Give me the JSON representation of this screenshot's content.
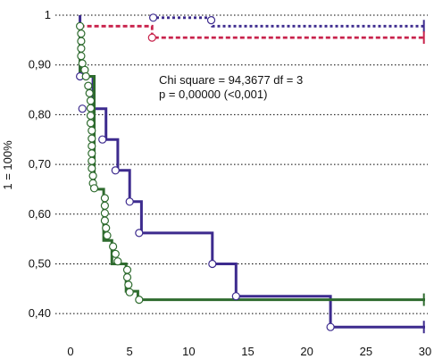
{
  "chart_data": {
    "type": "line",
    "step": true,
    "title": "",
    "xlabel": "",
    "ylabel": "1 = 100%",
    "xlim": [
      0,
      30
    ],
    "ylim": [
      0.35,
      1.0
    ],
    "x_ticks": [
      0,
      5,
      10,
      15,
      20,
      25,
      30
    ],
    "x_tick_labels": [
      "0",
      "5",
      "10",
      "15",
      "20",
      "25",
      "30"
    ],
    "y_ticks": [
      0.4,
      0.5,
      0.6,
      0.7,
      0.8,
      0.9,
      1.0
    ],
    "y_tick_labels": [
      "0,40",
      "0,50",
      "0,60",
      "0,70",
      "0,80",
      "0,90",
      "1"
    ],
    "grid": "horizontal dotted",
    "legend": "none",
    "annotations": [
      "Chi square = 94,3677 df = 3",
      "p = 0,00000 (<0,001)"
    ],
    "series": [
      {
        "color": "#3d2b8e",
        "dash": "solid",
        "steps": [
          [
            0.8,
            1.0
          ],
          [
            0.8,
            0.877
          ],
          [
            1.9,
            0.877
          ],
          [
            1.9,
            0.812
          ],
          [
            3.0,
            0.812
          ],
          [
            3.0,
            0.75
          ],
          [
            4.0,
            0.75
          ],
          [
            4.0,
            0.688
          ],
          [
            5.0,
            0.688
          ],
          [
            5.0,
            0.625
          ],
          [
            6.0,
            0.625
          ],
          [
            6.0,
            0.562
          ],
          [
            12.0,
            0.562
          ],
          [
            12.0,
            0.5
          ],
          [
            14.0,
            0.5
          ],
          [
            14.0,
            0.435
          ],
          [
            22.0,
            0.435
          ],
          [
            22.0,
            0.373
          ],
          [
            30.0,
            0.373
          ]
        ],
        "censored": [
          [
            0.8,
            0.877
          ],
          [
            1.0,
            0.812
          ],
          [
            2.7,
            0.75
          ],
          [
            3.8,
            0.688
          ],
          [
            5.0,
            0.625
          ],
          [
            5.8,
            0.562
          ],
          [
            12.0,
            0.5
          ],
          [
            14.0,
            0.435
          ],
          [
            22.0,
            0.373
          ]
        ],
        "end_mark": [
          29.9,
          0.373
        ]
      },
      {
        "color": "#2e6b2e",
        "dash": "solid",
        "steps": [
          [
            0.8,
            0.978
          ],
          [
            0.8,
            0.877
          ],
          [
            2.0,
            0.877
          ],
          [
            2.0,
            0.65
          ],
          [
            2.8,
            0.65
          ],
          [
            2.8,
            0.547
          ],
          [
            3.5,
            0.547
          ],
          [
            3.5,
            0.5
          ],
          [
            4.7,
            0.5
          ],
          [
            4.7,
            0.445
          ],
          [
            5.7,
            0.445
          ],
          [
            5.7,
            0.428
          ],
          [
            30.0,
            0.428
          ]
        ],
        "censored": [
          [
            0.8,
            0.978
          ],
          [
            0.9,
            0.963
          ],
          [
            0.9,
            0.948
          ],
          [
            0.9,
            0.933
          ],
          [
            0.9,
            0.918
          ],
          [
            1.0,
            0.903
          ],
          [
            1.2,
            0.89
          ],
          [
            1.3,
            0.877
          ],
          [
            1.5,
            0.858
          ],
          [
            1.6,
            0.843
          ],
          [
            1.7,
            0.828
          ],
          [
            1.7,
            0.813
          ],
          [
            1.7,
            0.798
          ],
          [
            1.7,
            0.783
          ],
          [
            1.8,
            0.768
          ],
          [
            1.8,
            0.752
          ],
          [
            1.8,
            0.737
          ],
          [
            1.8,
            0.722
          ],
          [
            1.8,
            0.707
          ],
          [
            1.8,
            0.692
          ],
          [
            1.9,
            0.677
          ],
          [
            1.9,
            0.662
          ],
          [
            2.0,
            0.652
          ],
          [
            2.9,
            0.632
          ],
          [
            2.9,
            0.617
          ],
          [
            2.9,
            0.602
          ],
          [
            2.9,
            0.587
          ],
          [
            3.0,
            0.572
          ],
          [
            3.1,
            0.557
          ],
          [
            3.6,
            0.535
          ],
          [
            3.8,
            0.52
          ],
          [
            4.0,
            0.505
          ],
          [
            4.8,
            0.488
          ],
          [
            4.8,
            0.473
          ],
          [
            4.9,
            0.458
          ],
          [
            5.0,
            0.443
          ],
          [
            5.8,
            0.428
          ]
        ],
        "end_mark": [
          29.9,
          0.428
        ]
      },
      {
        "color": "#3d2b8e",
        "dash": "dotted",
        "steps": [
          [
            6.8,
            0.995
          ],
          [
            12.0,
            0.995
          ],
          [
            12.0,
            0.978
          ],
          [
            30.0,
            0.978
          ]
        ],
        "censored": [
          [
            7.0,
            0.995
          ],
          [
            11.9,
            0.99
          ]
        ],
        "end_mark": [
          29.9,
          0.978
        ]
      },
      {
        "color": "#c8224b",
        "dash": "dashed",
        "steps": [
          [
            0.8,
            0.978
          ],
          [
            6.9,
            0.978
          ],
          [
            6.9,
            0.955
          ],
          [
            30.0,
            0.955
          ]
        ],
        "censored": [
          [
            6.9,
            0.955
          ]
        ],
        "end_mark": [
          29.9,
          0.955
        ]
      }
    ]
  }
}
